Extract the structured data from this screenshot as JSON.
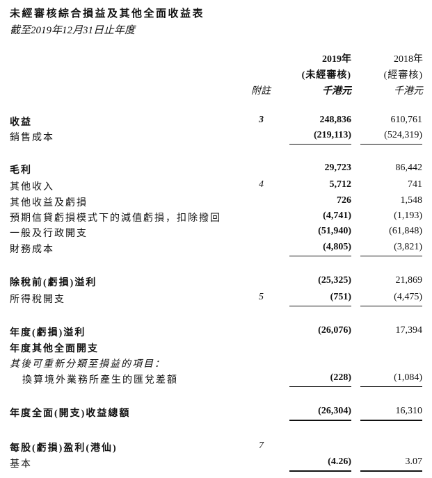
{
  "title": "未經審核綜合損益及其他全面收益表",
  "subtitle": "截至2019年12月31日止年度",
  "header": {
    "col2019": {
      "year": "2019年",
      "audit": "(未經審核)",
      "unit": "千港元"
    },
    "col2018": {
      "year": "2018年",
      "audit": "(經審核)",
      "unit": "千港元"
    },
    "note": "附註"
  },
  "rows": [
    {
      "label": "收益",
      "note": "3",
      "v2019": "248,836",
      "v2018": "610,761"
    },
    {
      "label": "銷售成本",
      "note": "",
      "v2019": "(219,113)",
      "v2018": "(524,319)"
    },
    {
      "label": "毛利",
      "note": "",
      "v2019": "29,723",
      "v2018": "86,442"
    },
    {
      "label": "其他收入",
      "note": "4",
      "v2019": "5,712",
      "v2018": "741"
    },
    {
      "label": "其他收益及虧損",
      "note": "",
      "v2019": "726",
      "v2018": "1,548"
    },
    {
      "label": "預期信貸虧損模式下的減值虧損，扣除撥回",
      "note": "",
      "v2019": "(4,741)",
      "v2018": "(1,193)"
    },
    {
      "label": "一般及行政開支",
      "note": "",
      "v2019": "(51,940)",
      "v2018": "(61,848)"
    },
    {
      "label": "財務成本",
      "note": "",
      "v2019": "(4,805)",
      "v2018": "(3,821)"
    },
    {
      "label": "除稅前(虧損)溢利",
      "note": "",
      "v2019": "(25,325)",
      "v2018": "21,869"
    },
    {
      "label": "所得稅開支",
      "note": "5",
      "v2019": "(751)",
      "v2018": "(4,475)"
    },
    {
      "label": "年度(虧損)溢利",
      "note": "",
      "v2019": "(26,076)",
      "v2018": "17,394"
    },
    {
      "label": "年度其他全面開支",
      "note": "",
      "v2019": "",
      "v2018": ""
    },
    {
      "label": "其後可重新分類至損益的項目：",
      "note": "",
      "v2019": "",
      "v2018": ""
    },
    {
      "label": "換算境外業務所產生的匯兌差額",
      "note": "",
      "v2019": "(228)",
      "v2018": "(1,084)"
    },
    {
      "label": "年度全面(開支)收益總額",
      "note": "",
      "v2019": "(26,304)",
      "v2018": "16,310"
    },
    {
      "label": "每股(虧損)盈利(港仙)",
      "note": "7",
      "v2019": "",
      "v2018": ""
    },
    {
      "label": "基本",
      "note": "",
      "v2019": "(4.26)",
      "v2018": "3.07"
    }
  ]
}
